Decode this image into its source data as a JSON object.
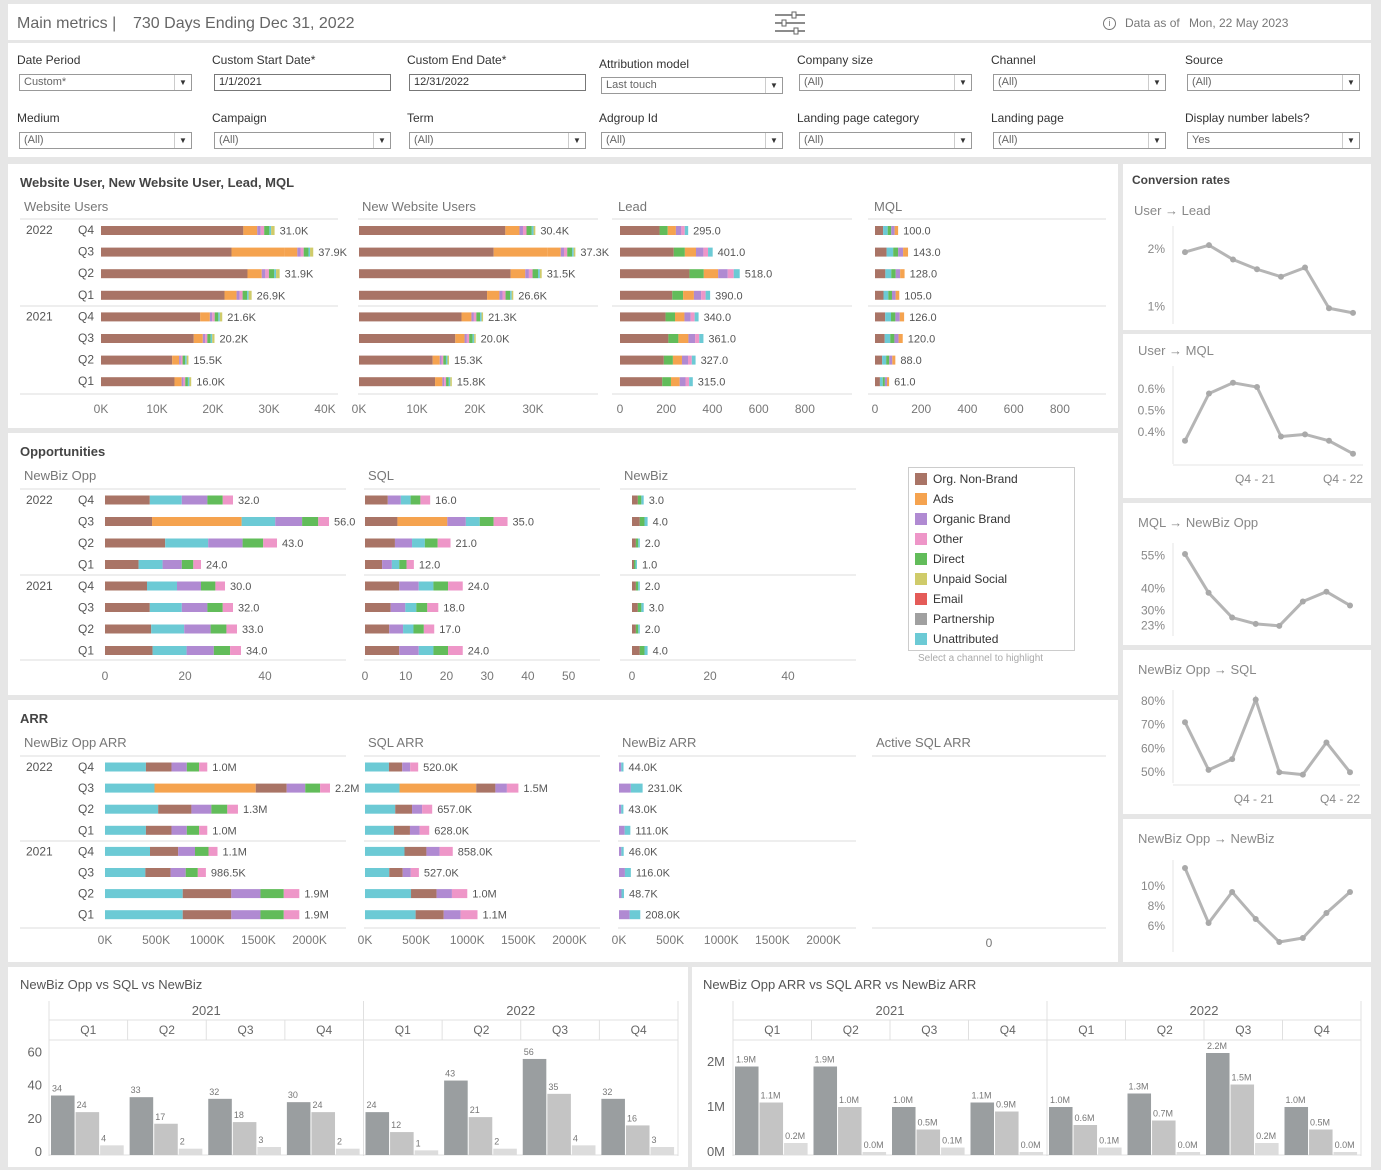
{
  "header": {
    "title": "Main metrics |",
    "period": "730 Days Ending Dec 31, 2022",
    "info_icon": "info-icon",
    "data_as_of_label": "Data as of",
    "data_as_of_value": "Mon, 22 May 2023"
  },
  "filters": [
    {
      "label": "Date Period",
      "value": "Custom*",
      "kind": "select"
    },
    {
      "label": "Custom Start Date*",
      "value": "1/1/2021",
      "kind": "text"
    },
    {
      "label": "Custom End Date*",
      "value": "12/31/2022",
      "kind": "text"
    },
    {
      "label": "Attribution model",
      "value": "Last touch",
      "kind": "select"
    },
    {
      "label": "Company size",
      "value": "(All)",
      "kind": "select"
    },
    {
      "label": "Channel",
      "value": "(All)",
      "kind": "select"
    },
    {
      "label": "Source",
      "value": "(All)",
      "kind": "select"
    },
    {
      "label": "Medium",
      "value": "(All)",
      "kind": "select"
    },
    {
      "label": "Campaign",
      "value": "(All)",
      "kind": "select"
    },
    {
      "label": "Term",
      "value": "(All)",
      "kind": "select"
    },
    {
      "label": "Adgroup Id",
      "value": "(All)",
      "kind": "select"
    },
    {
      "label": "Landing page category",
      "value": "(All)",
      "kind": "select"
    },
    {
      "label": "Landing page",
      "value": "(All)",
      "kind": "select"
    },
    {
      "label": "Display number labels?",
      "value": "Yes",
      "kind": "select"
    }
  ],
  "colors": {
    "Org. Non-Brand": "#a97466",
    "Ads": "#f5a34f",
    "Organic Brand": "#b08ad2",
    "Other": "#ee96c8",
    "Direct": "#62bc5a",
    "Unpaid Social": "#cfcb6a",
    "Email": "#e45b58",
    "Partnership": "#a0a0a0",
    "Unattributed": "#6ccad5",
    "line": "#b5b5b5",
    "bar1": "#9a9ea0",
    "bar2": "#c4c4c4",
    "bar3": "#dcdcdc"
  },
  "legend": {
    "items": [
      "Org. Non-Brand",
      "Ads",
      "Organic Brand",
      "Other",
      "Direct",
      "Unpaid Social",
      "Email",
      "Partnership",
      "Unattributed"
    ],
    "hint": "Select a channel to highlight"
  },
  "section_titles": {
    "s1": "Website User, New Website User, Lead, MQL",
    "s2": "Opportunities",
    "s3": "ARR",
    "conv": "Conversion rates",
    "b1": "NewBiz Opp vs SQL vs NewBiz",
    "b2": "NewBiz Opp ARR vs SQL ARR vs NewBiz ARR"
  },
  "row_labels": {
    "years": [
      "2022",
      "2021"
    ],
    "quarters": [
      "Q4",
      "Q3",
      "Q2",
      "Q1",
      "Q4",
      "Q3",
      "Q2",
      "Q1"
    ]
  },
  "chart_data": [
    {
      "id": "website_users",
      "type": "bar",
      "title": "Website Users",
      "orientation": "horizontal-stacked",
      "labels": [
        "31.0K",
        "37.9K",
        "31.9K",
        "26.9K",
        "21.6K",
        "20.2K",
        "15.5K",
        "16.0K"
      ],
      "values": [
        31000,
        37900,
        31900,
        26900,
        21600,
        20200,
        15500,
        16000
      ],
      "xlim": [
        0,
        40000
      ],
      "ticks": [
        "0K",
        "10K",
        "20K",
        "30K",
        "40K"
      ]
    },
    {
      "id": "new_website_users",
      "type": "bar",
      "title": "New Website Users",
      "orientation": "horizontal-stacked",
      "labels": [
        "30.4K",
        "37.3K",
        "31.5K",
        "26.6K",
        "21.3K",
        "20.0K",
        "15.3K",
        "15.8K"
      ],
      "values": [
        30400,
        37300,
        31500,
        26600,
        21300,
        20000,
        15300,
        15800
      ],
      "xlim": [
        0,
        40000
      ],
      "ticks": [
        "0K",
        "10K",
        "20K",
        "30K"
      ]
    },
    {
      "id": "lead",
      "type": "bar",
      "title": "Lead",
      "orientation": "horizontal-stacked",
      "labels": [
        "295.0",
        "401.0",
        "518.0",
        "390.0",
        "340.0",
        "361.0",
        "327.0",
        "315.0"
      ],
      "values": [
        295,
        401,
        518,
        390,
        340,
        361,
        327,
        315
      ],
      "xlim": [
        0,
        900
      ],
      "ticks": [
        "0",
        "200",
        "400",
        "600",
        "800"
      ]
    },
    {
      "id": "mql",
      "type": "bar",
      "title": "MQL",
      "orientation": "horizontal-stacked",
      "labels": [
        "100.0",
        "143.0",
        "128.0",
        "105.0",
        "126.0",
        "120.0",
        "88.0",
        "61.0"
      ],
      "values": [
        100,
        143,
        128,
        105,
        126,
        120,
        88,
        61
      ],
      "xlim": [
        0,
        900
      ],
      "ticks": [
        "0",
        "200",
        "400",
        "600",
        "800"
      ]
    },
    {
      "id": "newbiz_opp",
      "type": "bar",
      "title": "NewBiz Opp",
      "orientation": "horizontal-stacked",
      "labels": [
        "32.0",
        "56.0",
        "43.0",
        "24.0",
        "30.0",
        "32.0",
        "33.0",
        "34.0"
      ],
      "values": [
        32,
        56,
        43,
        24,
        30,
        32,
        33,
        34
      ],
      "xlim": [
        0,
        60
      ],
      "ticks": [
        "0",
        "20",
        "40"
      ]
    },
    {
      "id": "sql",
      "type": "bar",
      "title": "SQL",
      "orientation": "horizontal-stacked",
      "labels": [
        "16.0",
        "35.0",
        "21.0",
        "12.0",
        "24.0",
        "18.0",
        "17.0",
        "24.0"
      ],
      "values": [
        16,
        35,
        21,
        12,
        24,
        18,
        17,
        24
      ],
      "xlim": [
        0,
        55
      ],
      "ticks": [
        "0",
        "10",
        "20",
        "30",
        "40",
        "50"
      ]
    },
    {
      "id": "newbiz",
      "type": "bar",
      "title": "NewBiz",
      "orientation": "horizontal-stacked",
      "labels": [
        "3.0",
        "4.0",
        "2.0",
        "1.0",
        "2.0",
        "3.0",
        "2.0",
        "4.0"
      ],
      "values": [
        3,
        4,
        2,
        1,
        2,
        3,
        2,
        4
      ],
      "xlim": [
        0,
        50
      ],
      "ticks": [
        "0",
        "20",
        "40"
      ]
    },
    {
      "id": "newbiz_opp_arr",
      "type": "bar",
      "title": "NewBiz Opp ARR",
      "orientation": "horizontal-stacked",
      "labels": [
        "1.0M",
        "2.2M",
        "1.3M",
        "1.0M",
        "1.1M",
        "986.5K",
        "1.9M",
        "1.9M"
      ],
      "values": [
        1000000,
        2200000,
        1300000,
        1000000,
        1100000,
        986500,
        1900000,
        1900000
      ],
      "xlim": [
        0,
        2200000
      ],
      "ticks": [
        "0K",
        "500K",
        "1000K",
        "1500K",
        "2000K"
      ]
    },
    {
      "id": "sql_arr",
      "type": "bar",
      "title": "SQL ARR",
      "orientation": "horizontal-stacked",
      "labels": [
        "520.0K",
        "1.5M",
        "657.0K",
        "628.0K",
        "858.0K",
        "527.0K",
        "1.0M",
        "1.1M"
      ],
      "values": [
        520000,
        1500000,
        657000,
        628000,
        858000,
        527000,
        1000000,
        1100000
      ],
      "xlim": [
        0,
        2200000
      ],
      "ticks": [
        "0K",
        "500K",
        "1000K",
        "1500K",
        "2000K"
      ]
    },
    {
      "id": "newbiz_arr",
      "type": "bar",
      "title": "NewBiz ARR",
      "orientation": "horizontal-stacked",
      "labels": [
        "44.0K",
        "231.0K",
        "43.0K",
        "111.0K",
        "46.0K",
        "116.0K",
        "48.7K",
        "208.0K"
      ],
      "values": [
        44000,
        231000,
        43000,
        111000,
        46000,
        116000,
        48700,
        208000
      ],
      "xlim": [
        0,
        2200000
      ],
      "ticks": [
        "0K",
        "500K",
        "1000K",
        "1500K",
        "2000K"
      ]
    },
    {
      "id": "active_sql_arr",
      "type": "bar",
      "title": "Active SQL ARR",
      "values": [],
      "ticks": [
        "0"
      ]
    },
    {
      "id": "user_lead",
      "type": "line",
      "title": "User → Lead",
      "values": [
        1.95,
        2.07,
        1.82,
        1.65,
        1.52,
        1.68,
        0.97,
        0.89
      ],
      "ylim": [
        0.8,
        2.3
      ],
      "ticks": [
        {
          "v": 2,
          "l": "2%"
        },
        {
          "v": 1,
          "l": "1%"
        }
      ]
    },
    {
      "id": "user_mql",
      "type": "line",
      "title": "User → MQL",
      "values": [
        0.36,
        0.58,
        0.63,
        0.61,
        0.38,
        0.39,
        0.36,
        0.3
      ],
      "ylim": [
        0.28,
        0.68
      ],
      "ticks": [
        {
          "v": 0.6,
          "l": "0.6%"
        },
        {
          "v": 0.5,
          "l": "0.5%"
        },
        {
          "v": 0.4,
          "l": "0.4%"
        }
      ],
      "xticks": [
        "Q4 - 21",
        "Q4 - 22"
      ]
    },
    {
      "id": "mql_newbiz_opp",
      "type": "line",
      "title": "MQL → NewBiz Opp",
      "values": [
        55.7,
        38,
        26.7,
        23.8,
        22.9,
        34,
        38.5,
        32.2
      ],
      "ylim": [
        21,
        58
      ],
      "ticks": [
        {
          "v": 55,
          "l": "55%"
        },
        {
          "v": 40,
          "l": "40%"
        },
        {
          "v": 30,
          "l": "30%"
        },
        {
          "v": 23,
          "l": "23%"
        }
      ]
    },
    {
      "id": "newbiz_opp_sql",
      "type": "line",
      "title": "NewBiz Opp → SQL",
      "values": [
        71,
        51,
        55.5,
        80.5,
        50,
        49,
        62.5,
        50
      ],
      "ylim": [
        48,
        82
      ],
      "ticks": [
        {
          "v": 80,
          "l": "80%"
        },
        {
          "v": 70,
          "l": "70%"
        },
        {
          "v": 60,
          "l": "60%"
        },
        {
          "v": 50,
          "l": "50%"
        }
      ],
      "xticks": [
        "Q4 - 21",
        "Q4 - 22"
      ]
    },
    {
      "id": "newbiz_opp_newbiz",
      "type": "line",
      "title": "NewBiz Opp → NewBiz",
      "values": [
        11.8,
        6.3,
        9.4,
        6.7,
        4.4,
        4.8,
        7.3,
        9.4
      ],
      "ylim": [
        4,
        12
      ],
      "ticks": [
        {
          "v": 10,
          "l": "10%"
        },
        {
          "v": 8,
          "l": "8%"
        },
        {
          "v": 6,
          "l": "6%"
        }
      ]
    },
    {
      "id": "counts_grouped",
      "type": "bar",
      "title": "NewBiz Opp vs SQL vs NewBiz",
      "years": [
        "2021",
        "2022"
      ],
      "categories": [
        "Q1",
        "Q2",
        "Q3",
        "Q4",
        "Q1",
        "Q2",
        "Q3",
        "Q4"
      ],
      "series": [
        {
          "name": "NewBiz Opp",
          "values": [
            34,
            33,
            32,
            30,
            24,
            43,
            56,
            32
          ]
        },
        {
          "name": "SQL",
          "values": [
            24,
            17,
            18,
            24,
            12,
            21,
            35,
            16
          ]
        },
        {
          "name": "NewBiz",
          "values": [
            4,
            2,
            3,
            2,
            1,
            2,
            4,
            3
          ]
        }
      ],
      "ylim": [
        0,
        65
      ],
      "ticks": [
        0,
        20,
        40,
        60
      ]
    },
    {
      "id": "arr_grouped",
      "type": "bar",
      "title": "NewBiz Opp ARR vs SQL ARR vs NewBiz ARR",
      "years": [
        "2021",
        "2022"
      ],
      "categories": [
        "Q1",
        "Q2",
        "Q3",
        "Q4",
        "Q1",
        "Q2",
        "Q3",
        "Q4"
      ],
      "series": [
        {
          "name": "NewBiz Opp ARR",
          "values": [
            1.9,
            1.9,
            1.0,
            1.1,
            1.0,
            1.3,
            2.2,
            1.0
          ],
          "labels": [
            "1.9M",
            "1.9M",
            "1.0M",
            "1.1M",
            "1.0M",
            "1.3M",
            "2.2M",
            "1.0M"
          ]
        },
        {
          "name": "SQL ARR",
          "values": [
            1.1,
            1.0,
            0.5,
            0.9,
            0.6,
            0.7,
            1.5,
            0.5
          ],
          "labels": [
            "1.1M",
            "1.0M",
            "0.5M",
            "0.9M",
            "0.6M",
            "0.7M",
            "1.5M",
            "0.5M"
          ]
        },
        {
          "name": "NewBiz ARR",
          "values": [
            0.2,
            0.0,
            0.1,
            0.0,
            0.1,
            0.0,
            0.2,
            0.0
          ],
          "labels": [
            "0.2M",
            "0.0M",
            "0.1M",
            "0.0M",
            "0.1M",
            "0.0M",
            "0.2M",
            "0.0M"
          ]
        }
      ],
      "ylim": [
        0,
        2.4
      ],
      "ticks": [
        {
          "v": 0,
          "l": "0M"
        },
        {
          "v": 1,
          "l": "1M"
        },
        {
          "v": 2,
          "l": "2M"
        }
      ]
    }
  ]
}
